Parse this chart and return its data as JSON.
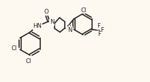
{
  "bg_color": "#fdf8f0",
  "bond_color": "#222222",
  "line_width": 1.2,
  "font_size": 6.2,
  "fig_width": 2.2,
  "fig_height": 1.21,
  "dpi": 100,
  "xlim": [
    0,
    11
  ],
  "ylim": [
    0,
    6
  ]
}
